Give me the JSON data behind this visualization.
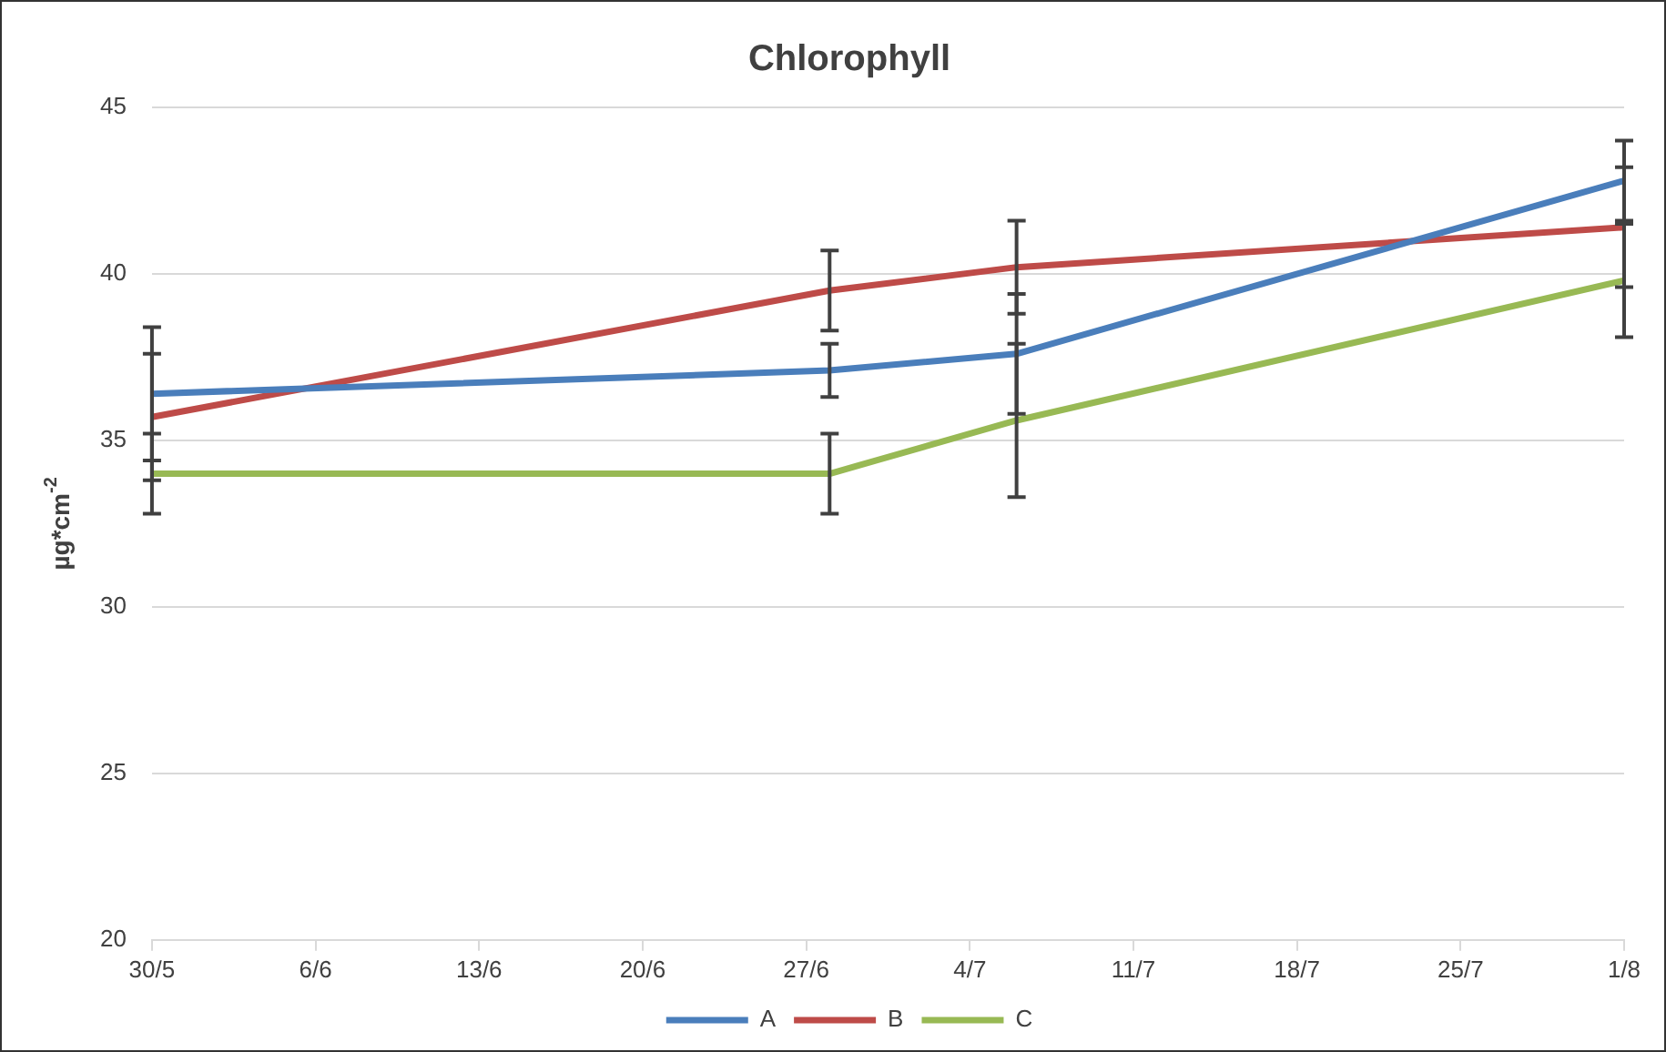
{
  "chart_data": {
    "type": "line",
    "title": "Chlorophyll",
    "ylabel": "µg*cm$^{-2}$",
    "x": [
      "--05-30",
      "--06-28",
      "--07-06",
      "--08-01"
    ],
    "series": [
      {
        "name": "A",
        "color": "#4a7ebb",
        "values": [
          36.4,
          37.1,
          37.6,
          42.8
        ],
        "errors": [
          2.0,
          0.8,
          1.8,
          1.2
        ]
      },
      {
        "name": "B",
        "color": "#be4b48",
        "values": [
          35.7,
          39.5,
          40.2,
          41.4
        ],
        "errors": [
          1.9,
          1.2,
          1.4,
          1.8
        ]
      },
      {
        "name": "C",
        "color": "#98b954",
        "values": [
          34.0,
          34.0,
          35.6,
          39.8
        ],
        "errors": [
          1.2,
          1.2,
          2.3,
          1.7
        ]
      }
    ],
    "xlim": [
      "--05-30",
      "--08-01"
    ],
    "xticks": [
      {
        "value": "--05-30",
        "label": "30/5"
      },
      {
        "value": "--06-06",
        "label": "6/6"
      },
      {
        "value": "--06-13",
        "label": "13/6"
      },
      {
        "value": "--06-20",
        "label": "20/6"
      },
      {
        "value": "--06-27",
        "label": "27/6"
      },
      {
        "value": "--07-04",
        "label": "4/7"
      },
      {
        "value": "--07-11",
        "label": "11/7"
      },
      {
        "value": "--07-18",
        "label": "18/7"
      },
      {
        "value": "--07-25",
        "label": "25/7"
      },
      {
        "value": "--08-01",
        "label": "1/8"
      }
    ],
    "ylim": [
      20,
      45
    ],
    "yticks": [
      20,
      25,
      30,
      35,
      40,
      45
    ],
    "grid": "y",
    "legend": "bottom",
    "marker": "none",
    "line_style": "solid"
  }
}
